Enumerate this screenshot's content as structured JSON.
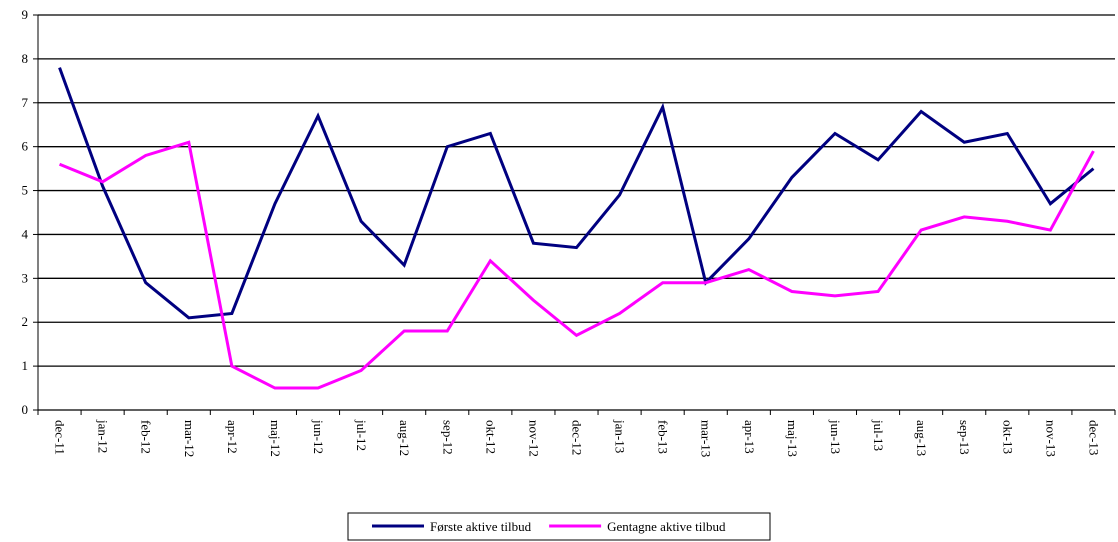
{
  "chart_data": {
    "type": "line",
    "categories": [
      "dec-11",
      "jan-12",
      "feb-12",
      "mar-12",
      "apr-12",
      "maj-12",
      "jun-12",
      "jul-12",
      "aug-12",
      "sep-12",
      "okt-12",
      "nov-12",
      "dec-12",
      "jan-13",
      "feb-13",
      "mar-13",
      "apr-13",
      "maj-13",
      "jun-13",
      "jul-13",
      "aug-13",
      "sep-13",
      "okt-13",
      "nov-13",
      "dec-13"
    ],
    "series": [
      {
        "name": "Første aktive tilbud",
        "color": "#000080",
        "values": [
          7.8,
          5.1,
          2.9,
          2.1,
          2.2,
          4.7,
          6.7,
          4.3,
          3.3,
          6.0,
          6.3,
          3.8,
          3.7,
          4.9,
          6.9,
          2.9,
          3.9,
          5.3,
          6.3,
          5.7,
          6.8,
          6.1,
          6.3,
          4.7,
          5.5
        ]
      },
      {
        "name": "Gentagne aktive tilbud",
        "color": "#ff00ff",
        "values": [
          5.6,
          5.2,
          5.8,
          6.1,
          1.0,
          0.5,
          0.5,
          0.9,
          1.8,
          1.8,
          3.4,
          2.5,
          1.7,
          2.2,
          2.9,
          2.9,
          3.2,
          2.7,
          2.6,
          2.7,
          4.1,
          4.4,
          4.3,
          4.1,
          5.9
        ]
      }
    ],
    "ylim": [
      0,
      9
    ],
    "yticks": [
      0,
      1,
      2,
      3,
      4,
      5,
      6,
      7,
      8,
      9
    ],
    "grid": true,
    "legend": "bottom"
  }
}
